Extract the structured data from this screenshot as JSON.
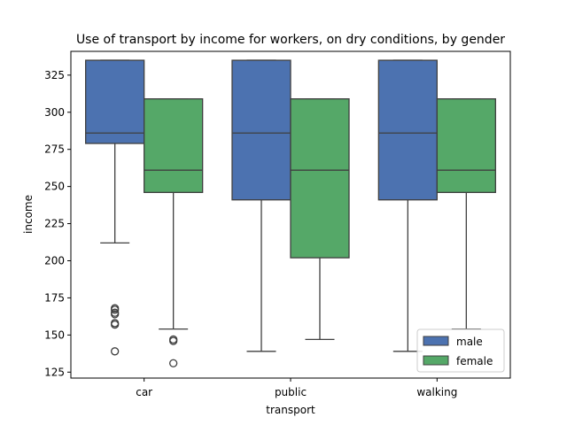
{
  "chart_data": {
    "type": "box",
    "title": "Use of transport by income for workers, on dry conditions, by gender",
    "xlabel": "transport",
    "ylabel": "income",
    "categories": [
      "car",
      "public",
      "walking"
    ],
    "ylim": [
      121,
      341
    ],
    "yticks": [
      125,
      150,
      175,
      200,
      225,
      250,
      275,
      300,
      325
    ],
    "legend_position": "lower-right",
    "grid": false,
    "series": [
      {
        "name": "male",
        "color": "#4c72b0",
        "boxes": [
          {
            "category": "car",
            "whislo": 212,
            "q1": 279,
            "med": 286,
            "q3": 335,
            "whishi": 335,
            "fliers": [
              139,
              157,
              158,
              164,
              165,
              167,
              168
            ]
          },
          {
            "category": "public",
            "whislo": 139,
            "q1": 241,
            "med": 286,
            "q3": 335,
            "whishi": 335,
            "fliers": []
          },
          {
            "category": "walking",
            "whislo": 139,
            "q1": 241,
            "med": 286,
            "q3": 335,
            "whishi": 335,
            "fliers": []
          }
        ]
      },
      {
        "name": "female",
        "color": "#55a868",
        "boxes": [
          {
            "category": "car",
            "whislo": 154,
            "q1": 246,
            "med": 261,
            "q3": 309,
            "whishi": 309,
            "fliers": [
              131,
              146,
              147
            ]
          },
          {
            "category": "public",
            "whislo": 147,
            "q1": 202,
            "med": 261,
            "q3": 309,
            "whishi": 309,
            "fliers": []
          },
          {
            "category": "walking",
            "whislo": 154,
            "q1": 246,
            "med": 261,
            "q3": 309,
            "whishi": 309,
            "fliers": []
          }
        ]
      }
    ]
  }
}
